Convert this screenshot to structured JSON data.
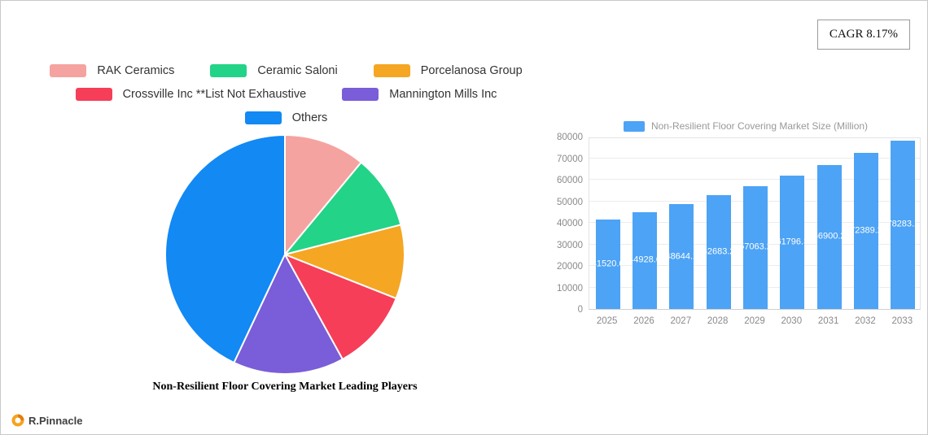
{
  "cagr": {
    "label": "CAGR 8.17%"
  },
  "logo": {
    "text": "R.Pinnacle"
  },
  "chart_data": [
    {
      "type": "pie",
      "title": "Non-Resilient Floor Covering Market Leading Players",
      "legend_position": "top",
      "series": [
        {
          "label": "RAK Ceramics",
          "value": 11,
          "color": "#f5a3a0"
        },
        {
          "label": "Ceramic Saloni",
          "value": 10,
          "color": "#23d387"
        },
        {
          "label": "Porcelanosa Group",
          "value": 10,
          "color": "#f5a623"
        },
        {
          "label": "Crossville Inc **List Not Exhaustive",
          "value": 11,
          "color": "#f63e59"
        },
        {
          "label": "Mannington Mills Inc",
          "value": 15,
          "color": "#7a5dd8"
        },
        {
          "label": "Others",
          "value": 43,
          "color": "#1289f3"
        }
      ],
      "legend_rows": [
        [
          0,
          1,
          2
        ],
        [
          3,
          4
        ],
        [
          5
        ]
      ]
    },
    {
      "type": "bar",
      "legend": "Non-Resilient Floor Covering Market Size (Million)",
      "categories": [
        "2025",
        "2026",
        "2027",
        "2028",
        "2029",
        "2030",
        "2031",
        "2032",
        "2033"
      ],
      "values": [
        41520.6,
        44928.6,
        48644.2,
        52683.2,
        57063.2,
        61796.3,
        66900.2,
        72389.2,
        78283.2
      ],
      "bar_color": "#4da3f5",
      "ylim": [
        0,
        80000
      ],
      "ytick_step": 10000,
      "grid": true
    }
  ]
}
